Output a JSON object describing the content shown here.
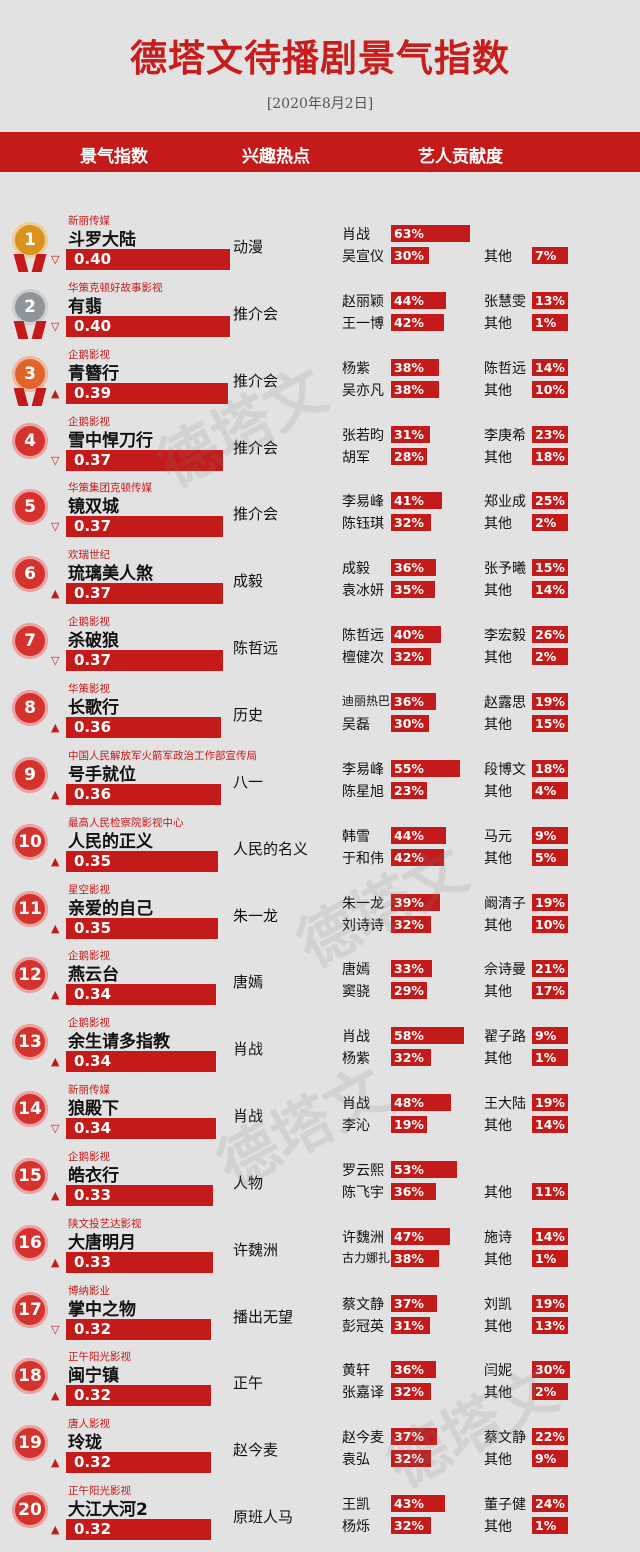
{
  "title": "德塔文待播剧景气指数",
  "date": "[2020年8月2日]",
  "headers": {
    "index": "景气指数",
    "interest": "兴趣热点",
    "artist": "艺人贡献度"
  },
  "watermark": "德塔文",
  "colors": {
    "accent": "#c41a1a",
    "background": "#e3e2e2"
  },
  "rows": [
    {
      "rank": "1",
      "company": "新丽传媒",
      "name": "斗罗大陆",
      "value": "0.40",
      "trend": "down",
      "hot": "动漫",
      "a1": {
        "n": "肖战",
        "p": "63%"
      },
      "a2": {
        "n": "吴宣仪",
        "p": "30%"
      },
      "a3": null,
      "a4": {
        "n": "其他",
        "p": "7%"
      }
    },
    {
      "rank": "2",
      "company": "华策克顿好故事影视",
      "name": "有翡",
      "value": "0.40",
      "trend": "down",
      "hot": "推介会",
      "a1": {
        "n": "赵丽颖",
        "p": "44%"
      },
      "a2": {
        "n": "王一博",
        "p": "42%"
      },
      "a3": {
        "n": "张慧雯",
        "p": "13%"
      },
      "a4": {
        "n": "其他",
        "p": "1%"
      }
    },
    {
      "rank": "3",
      "company": "企鹅影视",
      "name": "青簪行",
      "value": "0.39",
      "trend": "up",
      "hot": "推介会",
      "a1": {
        "n": "杨紫",
        "p": "38%"
      },
      "a2": {
        "n": "吴亦凡",
        "p": "38%"
      },
      "a3": {
        "n": "陈哲远",
        "p": "14%"
      },
      "a4": {
        "n": "其他",
        "p": "10%"
      }
    },
    {
      "rank": "4",
      "company": "企鹅影视",
      "name": "雪中悍刀行",
      "value": "0.37",
      "trend": "down",
      "hot": "推介会",
      "a1": {
        "n": "张若昀",
        "p": "31%"
      },
      "a2": {
        "n": "胡军",
        "p": "28%"
      },
      "a3": {
        "n": "李庚希",
        "p": "23%"
      },
      "a4": {
        "n": "其他",
        "p": "18%"
      }
    },
    {
      "rank": "5",
      "company": "华策集团克顿传媒",
      "name": "镜双城",
      "value": "0.37",
      "trend": "down",
      "hot": "推介会",
      "a1": {
        "n": "李易峰",
        "p": "41%"
      },
      "a2": {
        "n": "陈钰琪",
        "p": "32%"
      },
      "a3": {
        "n": "郑业成",
        "p": "25%"
      },
      "a4": {
        "n": "其他",
        "p": "2%"
      }
    },
    {
      "rank": "6",
      "company": "欢瑞世纪",
      "name": "琉璃美人煞",
      "value": "0.37",
      "trend": "up",
      "hot": "成毅",
      "a1": {
        "n": "成毅",
        "p": "36%"
      },
      "a2": {
        "n": "袁冰妍",
        "p": "35%"
      },
      "a3": {
        "n": "张予曦",
        "p": "15%"
      },
      "a4": {
        "n": "其他",
        "p": "14%"
      }
    },
    {
      "rank": "7",
      "company": "企鹅影视",
      "name": "杀破狼",
      "value": "0.37",
      "trend": "down",
      "hot": "陈哲远",
      "a1": {
        "n": "陈哲远",
        "p": "40%"
      },
      "a2": {
        "n": "檀健次",
        "p": "32%"
      },
      "a3": {
        "n": "李宏毅",
        "p": "26%"
      },
      "a4": {
        "n": "其他",
        "p": "2%"
      }
    },
    {
      "rank": "8",
      "company": "华策影视",
      "name": "长歌行",
      "value": "0.36",
      "trend": "up",
      "hot": "历史",
      "a1": {
        "n": "迪丽热巴",
        "p": "36%"
      },
      "a2": {
        "n": "吴磊",
        "p": "30%"
      },
      "a3": {
        "n": "赵露思",
        "p": "19%"
      },
      "a4": {
        "n": "其他",
        "p": "15%"
      }
    },
    {
      "rank": "9",
      "company": "中国人民解放军火箭军政治工作部宣传局",
      "name": "号手就位",
      "value": "0.36",
      "trend": "up",
      "hot": "八一",
      "a1": {
        "n": "李易峰",
        "p": "55%"
      },
      "a2": {
        "n": "陈星旭",
        "p": "23%"
      },
      "a3": {
        "n": "段博文",
        "p": "18%"
      },
      "a4": {
        "n": "其他",
        "p": "4%"
      }
    },
    {
      "rank": "10",
      "company": "最高人民检察院影视中心",
      "name": "人民的正义",
      "value": "0.35",
      "trend": "up",
      "hot": "人民的名义",
      "a1": {
        "n": "韩雪",
        "p": "44%"
      },
      "a2": {
        "n": "于和伟",
        "p": "42%"
      },
      "a3": {
        "n": "马元",
        "p": "9%"
      },
      "a4": {
        "n": "其他",
        "p": "5%"
      }
    },
    {
      "rank": "11",
      "company": "星空影视",
      "name": "亲爱的自己",
      "value": "0.35",
      "trend": "up",
      "hot": "朱一龙",
      "a1": {
        "n": "朱一龙",
        "p": "39%"
      },
      "a2": {
        "n": "刘诗诗",
        "p": "32%"
      },
      "a3": {
        "n": "阚清子",
        "p": "19%"
      },
      "a4": {
        "n": "其他",
        "p": "10%"
      }
    },
    {
      "rank": "12",
      "company": "企鹅影视",
      "name": "燕云台",
      "value": "0.34",
      "trend": "up",
      "hot": "唐嫣",
      "a1": {
        "n": "唐嫣",
        "p": "33%"
      },
      "a2": {
        "n": "窦骁",
        "p": "29%"
      },
      "a3": {
        "n": "佘诗曼",
        "p": "21%"
      },
      "a4": {
        "n": "其他",
        "p": "17%"
      }
    },
    {
      "rank": "13",
      "company": "企鹅影视",
      "name": "余生请多指教",
      "value": "0.34",
      "trend": "up",
      "hot": "肖战",
      "a1": {
        "n": "肖战",
        "p": "58%"
      },
      "a2": {
        "n": "杨紫",
        "p": "32%"
      },
      "a3": {
        "n": "翟子路",
        "p": "9%"
      },
      "a4": {
        "n": "其他",
        "p": "1%"
      }
    },
    {
      "rank": "14",
      "company": "新丽传媒",
      "name": "狼殿下",
      "value": "0.34",
      "trend": "down",
      "hot": "肖战",
      "a1": {
        "n": "肖战",
        "p": "48%"
      },
      "a2": {
        "n": "李沁",
        "p": "19%"
      },
      "a3": {
        "n": "王大陆",
        "p": "19%"
      },
      "a4": {
        "n": "其他",
        "p": "14%"
      }
    },
    {
      "rank": "15",
      "company": "企鹅影视",
      "name": "皓衣行",
      "value": "0.33",
      "trend": "up",
      "hot": "人物",
      "a1": {
        "n": "罗云熙",
        "p": "53%"
      },
      "a2": {
        "n": "陈飞宇",
        "p": "36%"
      },
      "a3": null,
      "a4": {
        "n": "其他",
        "p": "11%"
      }
    },
    {
      "rank": "16",
      "company": "陕文投艺达影视",
      "name": "大唐明月",
      "value": "0.33",
      "trend": "up",
      "hot": "许魏洲",
      "a1": {
        "n": "许魏洲",
        "p": "47%"
      },
      "a2": {
        "n": "古力娜扎",
        "p": "38%"
      },
      "a3": {
        "n": "施诗",
        "p": "14%"
      },
      "a4": {
        "n": "其他",
        "p": "1%"
      }
    },
    {
      "rank": "17",
      "company": "博纳影业",
      "name": "掌中之物",
      "value": "0.32",
      "trend": "down",
      "hot": "播出无望",
      "a1": {
        "n": "蔡文静",
        "p": "37%"
      },
      "a2": {
        "n": "彭冠英",
        "p": "31%"
      },
      "a3": {
        "n": "刘凯",
        "p": "19%"
      },
      "a4": {
        "n": "其他",
        "p": "13%"
      }
    },
    {
      "rank": "18",
      "company": "正午阳光影视",
      "name": "闽宁镇",
      "value": "0.32",
      "trend": "up",
      "hot": "正午",
      "a1": {
        "n": "黄轩",
        "p": "36%"
      },
      "a2": {
        "n": "张嘉译",
        "p": "32%"
      },
      "a3": {
        "n": "闫妮",
        "p": "30%"
      },
      "a4": {
        "n": "其他",
        "p": "2%"
      }
    },
    {
      "rank": "19",
      "company": "唐人影视",
      "name": "玲珑",
      "value": "0.32",
      "trend": "up",
      "hot": "赵今麦",
      "a1": {
        "n": "赵今麦",
        "p": "37%"
      },
      "a2": {
        "n": "袁弘",
        "p": "32%"
      },
      "a3": {
        "n": "蔡文静",
        "p": "22%"
      },
      "a4": {
        "n": "其他",
        "p": "9%"
      }
    },
    {
      "rank": "20",
      "company": "正午阳光影视",
      "name": "大江大河2",
      "value": "0.32",
      "trend": "up",
      "hot": "原班人马",
      "a1": {
        "n": "王凯",
        "p": "43%"
      },
      "a2": {
        "n": "杨烁",
        "p": "32%"
      },
      "a3": {
        "n": "董子健",
        "p": "24%"
      },
      "a4": {
        "n": "其他",
        "p": "1%"
      }
    }
  ]
}
